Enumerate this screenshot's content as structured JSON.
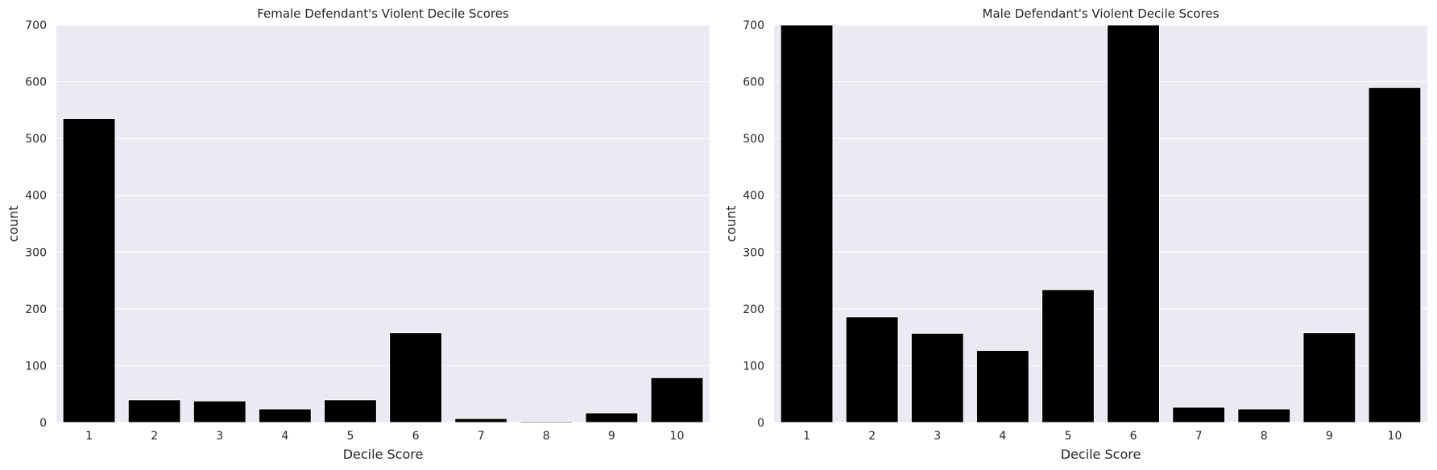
{
  "chart_data": [
    {
      "type": "bar",
      "title": "Female Defendant's Violent Decile Scores",
      "xlabel": "Decile Score",
      "ylabel": "count",
      "categories": [
        "1",
        "2",
        "3",
        "4",
        "5",
        "6",
        "7",
        "8",
        "9",
        "10"
      ],
      "values": [
        535,
        40,
        38,
        24,
        40,
        158,
        7,
        2,
        17,
        79
      ],
      "ylim": [
        0,
        700
      ],
      "yticks": [
        "0",
        "100",
        "200",
        "300",
        "400",
        "500",
        "600",
        "700"
      ],
      "bar_color": "#000000",
      "background": "#eaeaf2",
      "grid": "horizontal"
    },
    {
      "type": "bar",
      "title": "Male Defendant's Violent Decile Scores",
      "xlabel": "Decile Score",
      "ylabel": "count",
      "categories": [
        "1",
        "2",
        "3",
        "4",
        "5",
        "6",
        "7",
        "8",
        "9",
        "10"
      ],
      "values": [
        700,
        186,
        157,
        127,
        234,
        700,
        27,
        24,
        158,
        590
      ],
      "ylim": [
        0,
        700
      ],
      "yticks": [
        "0",
        "100",
        "200",
        "300",
        "400",
        "500",
        "600",
        "700"
      ],
      "bar_color": "#000000",
      "background": "#eaeaf2",
      "grid": "horizontal"
    }
  ]
}
